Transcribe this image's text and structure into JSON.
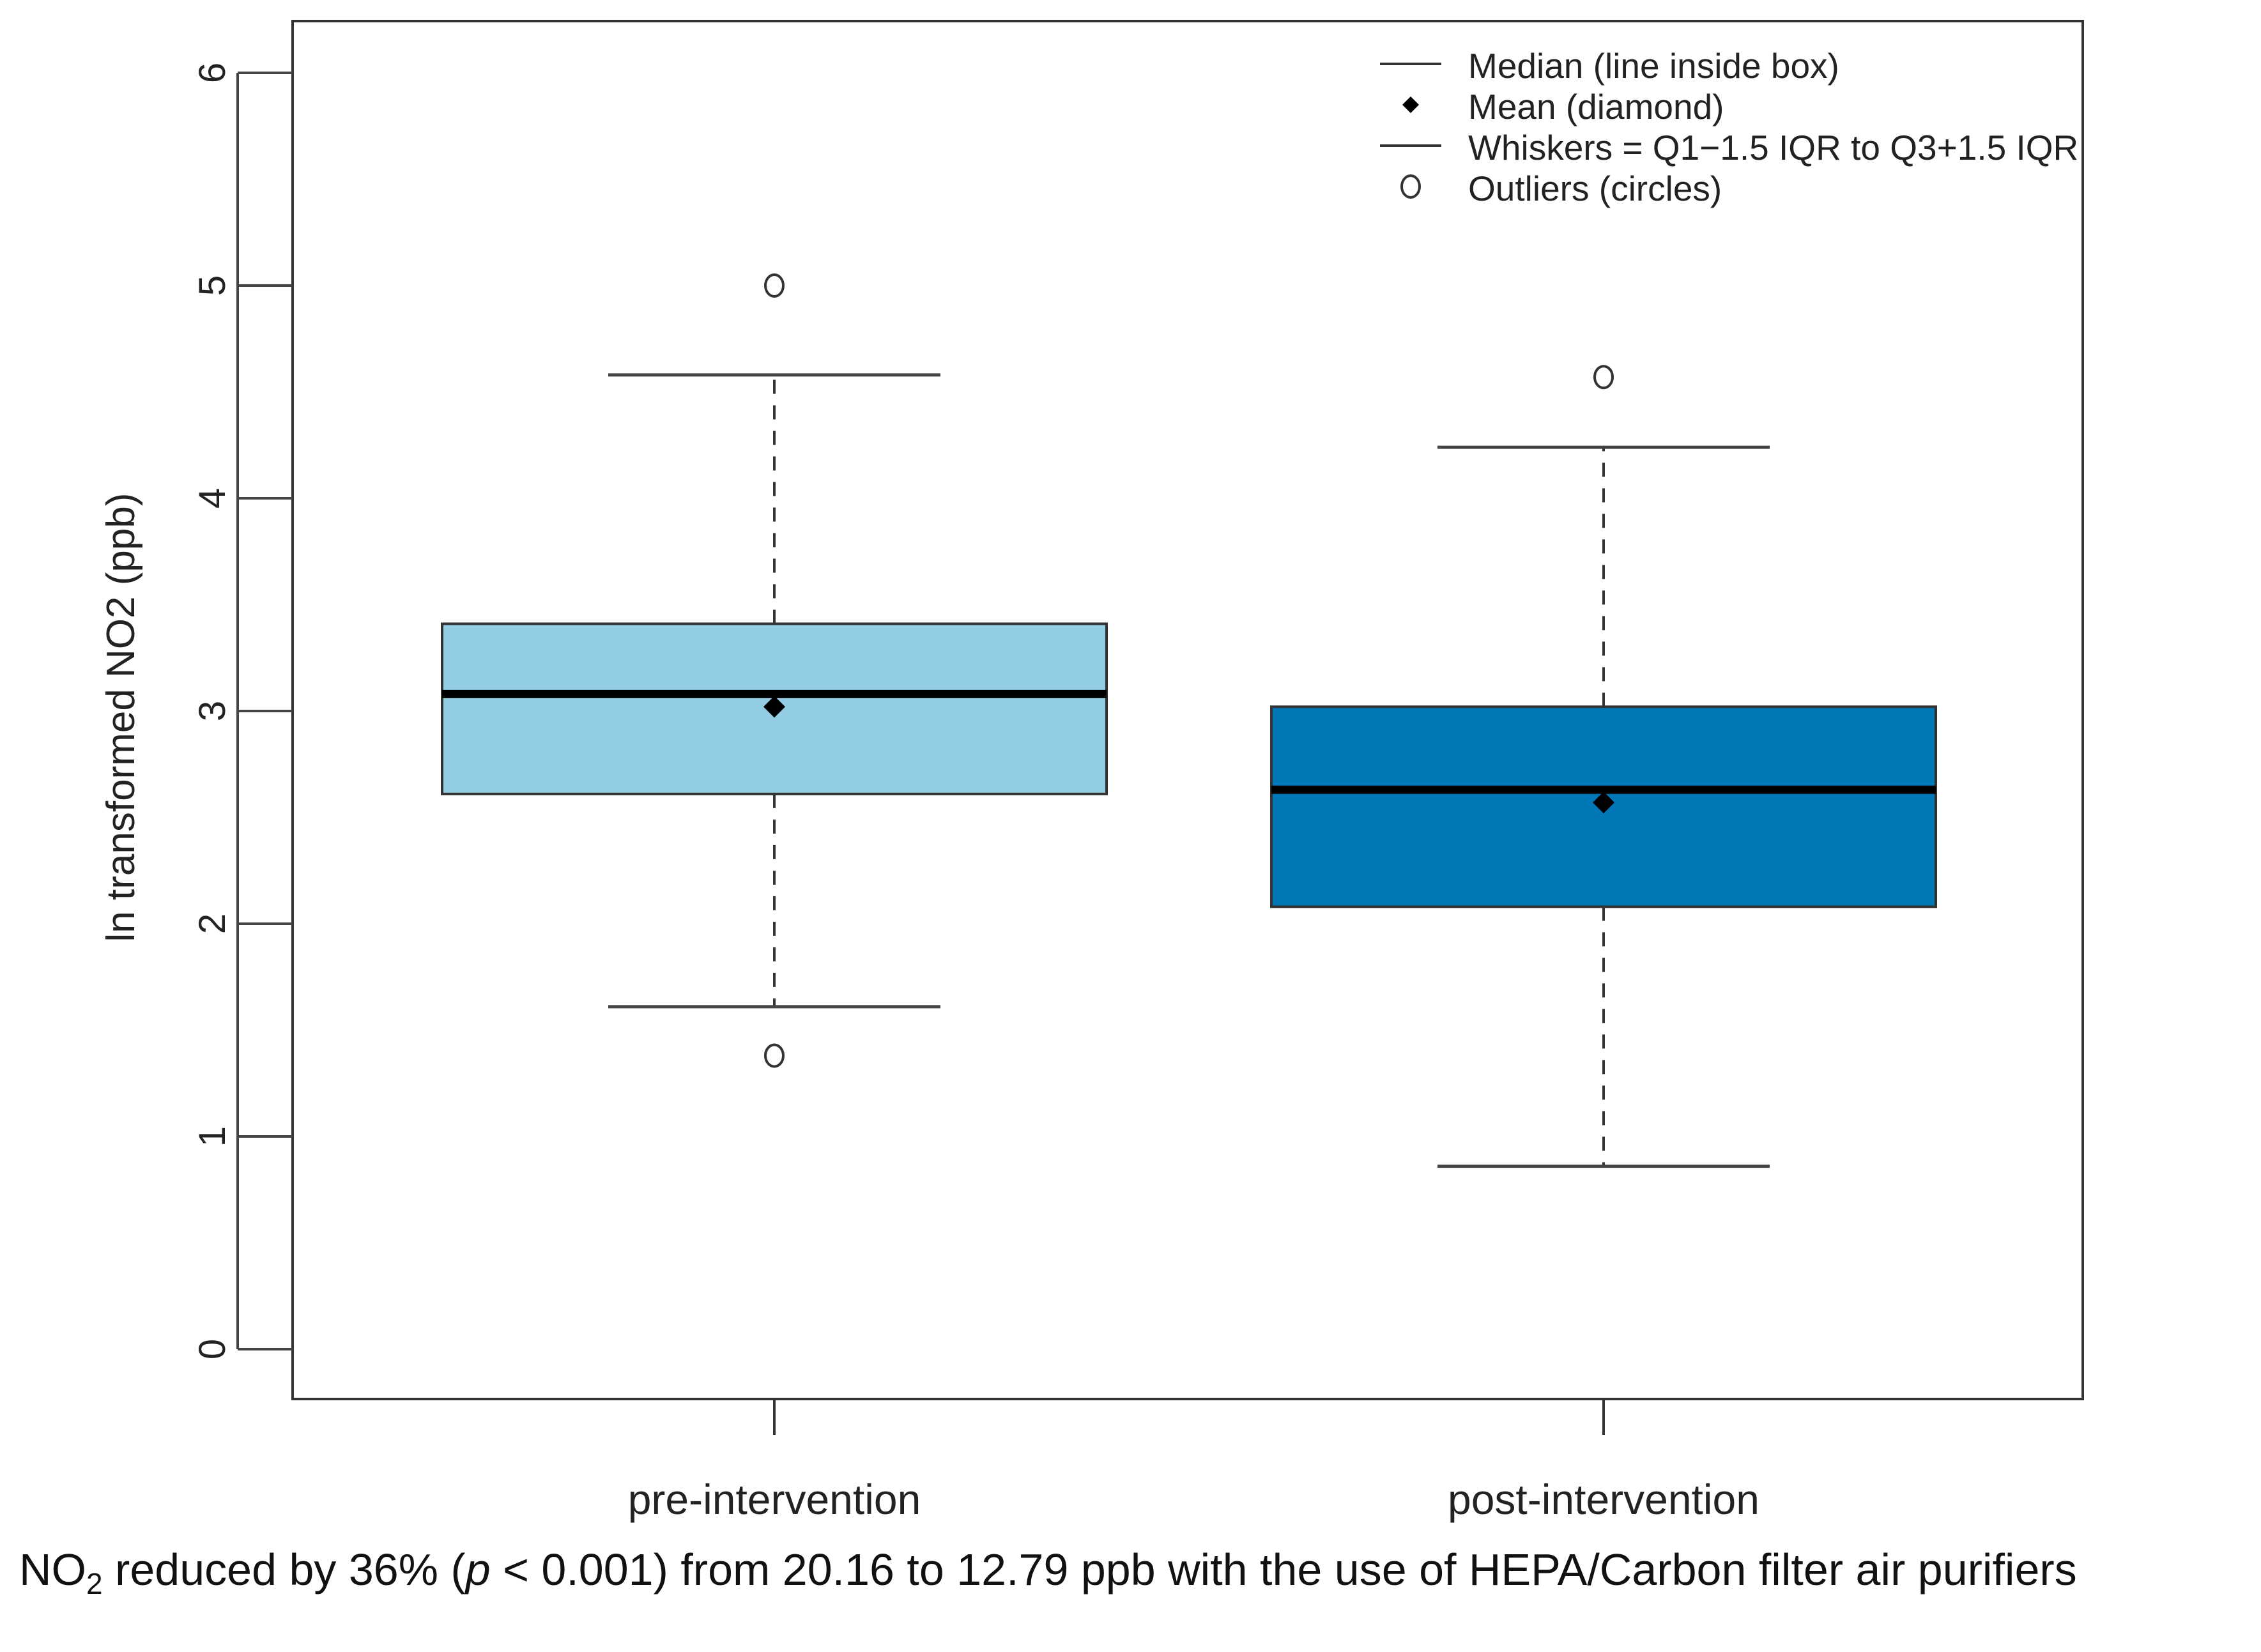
{
  "chart_data": {
    "type": "box",
    "ylabel": "ln transformed NO2 (ppb)",
    "xlabel": "",
    "ylim": [
      0,
      6
    ],
    "yticks": [
      0,
      1,
      2,
      3,
      4,
      5,
      6
    ],
    "categories": [
      "pre-intervention",
      "post-intervention"
    ],
    "series": [
      {
        "category": "pre-intervention",
        "color": "#92CDE3",
        "whisker_low": 1.61,
        "q1": 2.61,
        "median": 3.08,
        "q3": 3.41,
        "whisker_high": 4.58,
        "mean": 3.02,
        "outliers": [
          5.0,
          1.38
        ]
      },
      {
        "category": "post-intervention",
        "color": "#0077B6",
        "whisker_low": 0.86,
        "q1": 2.08,
        "median": 2.63,
        "q3": 3.02,
        "whisker_high": 4.24,
        "mean": 2.57,
        "outliers": [
          4.57
        ]
      }
    ],
    "legend": {
      "position": "top-right",
      "entries": [
        {
          "symbol": "line",
          "label": "Median (line inside box)"
        },
        {
          "symbol": "diamond",
          "label": "Mean (diamond)"
        },
        {
          "symbol": "line",
          "label": "Whiskers = Q1−1.5 IQR to Q3+1.5 IQR"
        },
        {
          "symbol": "circle",
          "label": "Outliers (circles)"
        }
      ]
    }
  },
  "caption": {
    "prefix": "NO",
    "subscript": "2",
    "middle": " reduced by 36% (",
    "p_italic": "p",
    "suffix": " < 0.001) from 20.16 to 12.79 ppb with the use of HEPA/Carbon filter air purifiers"
  }
}
